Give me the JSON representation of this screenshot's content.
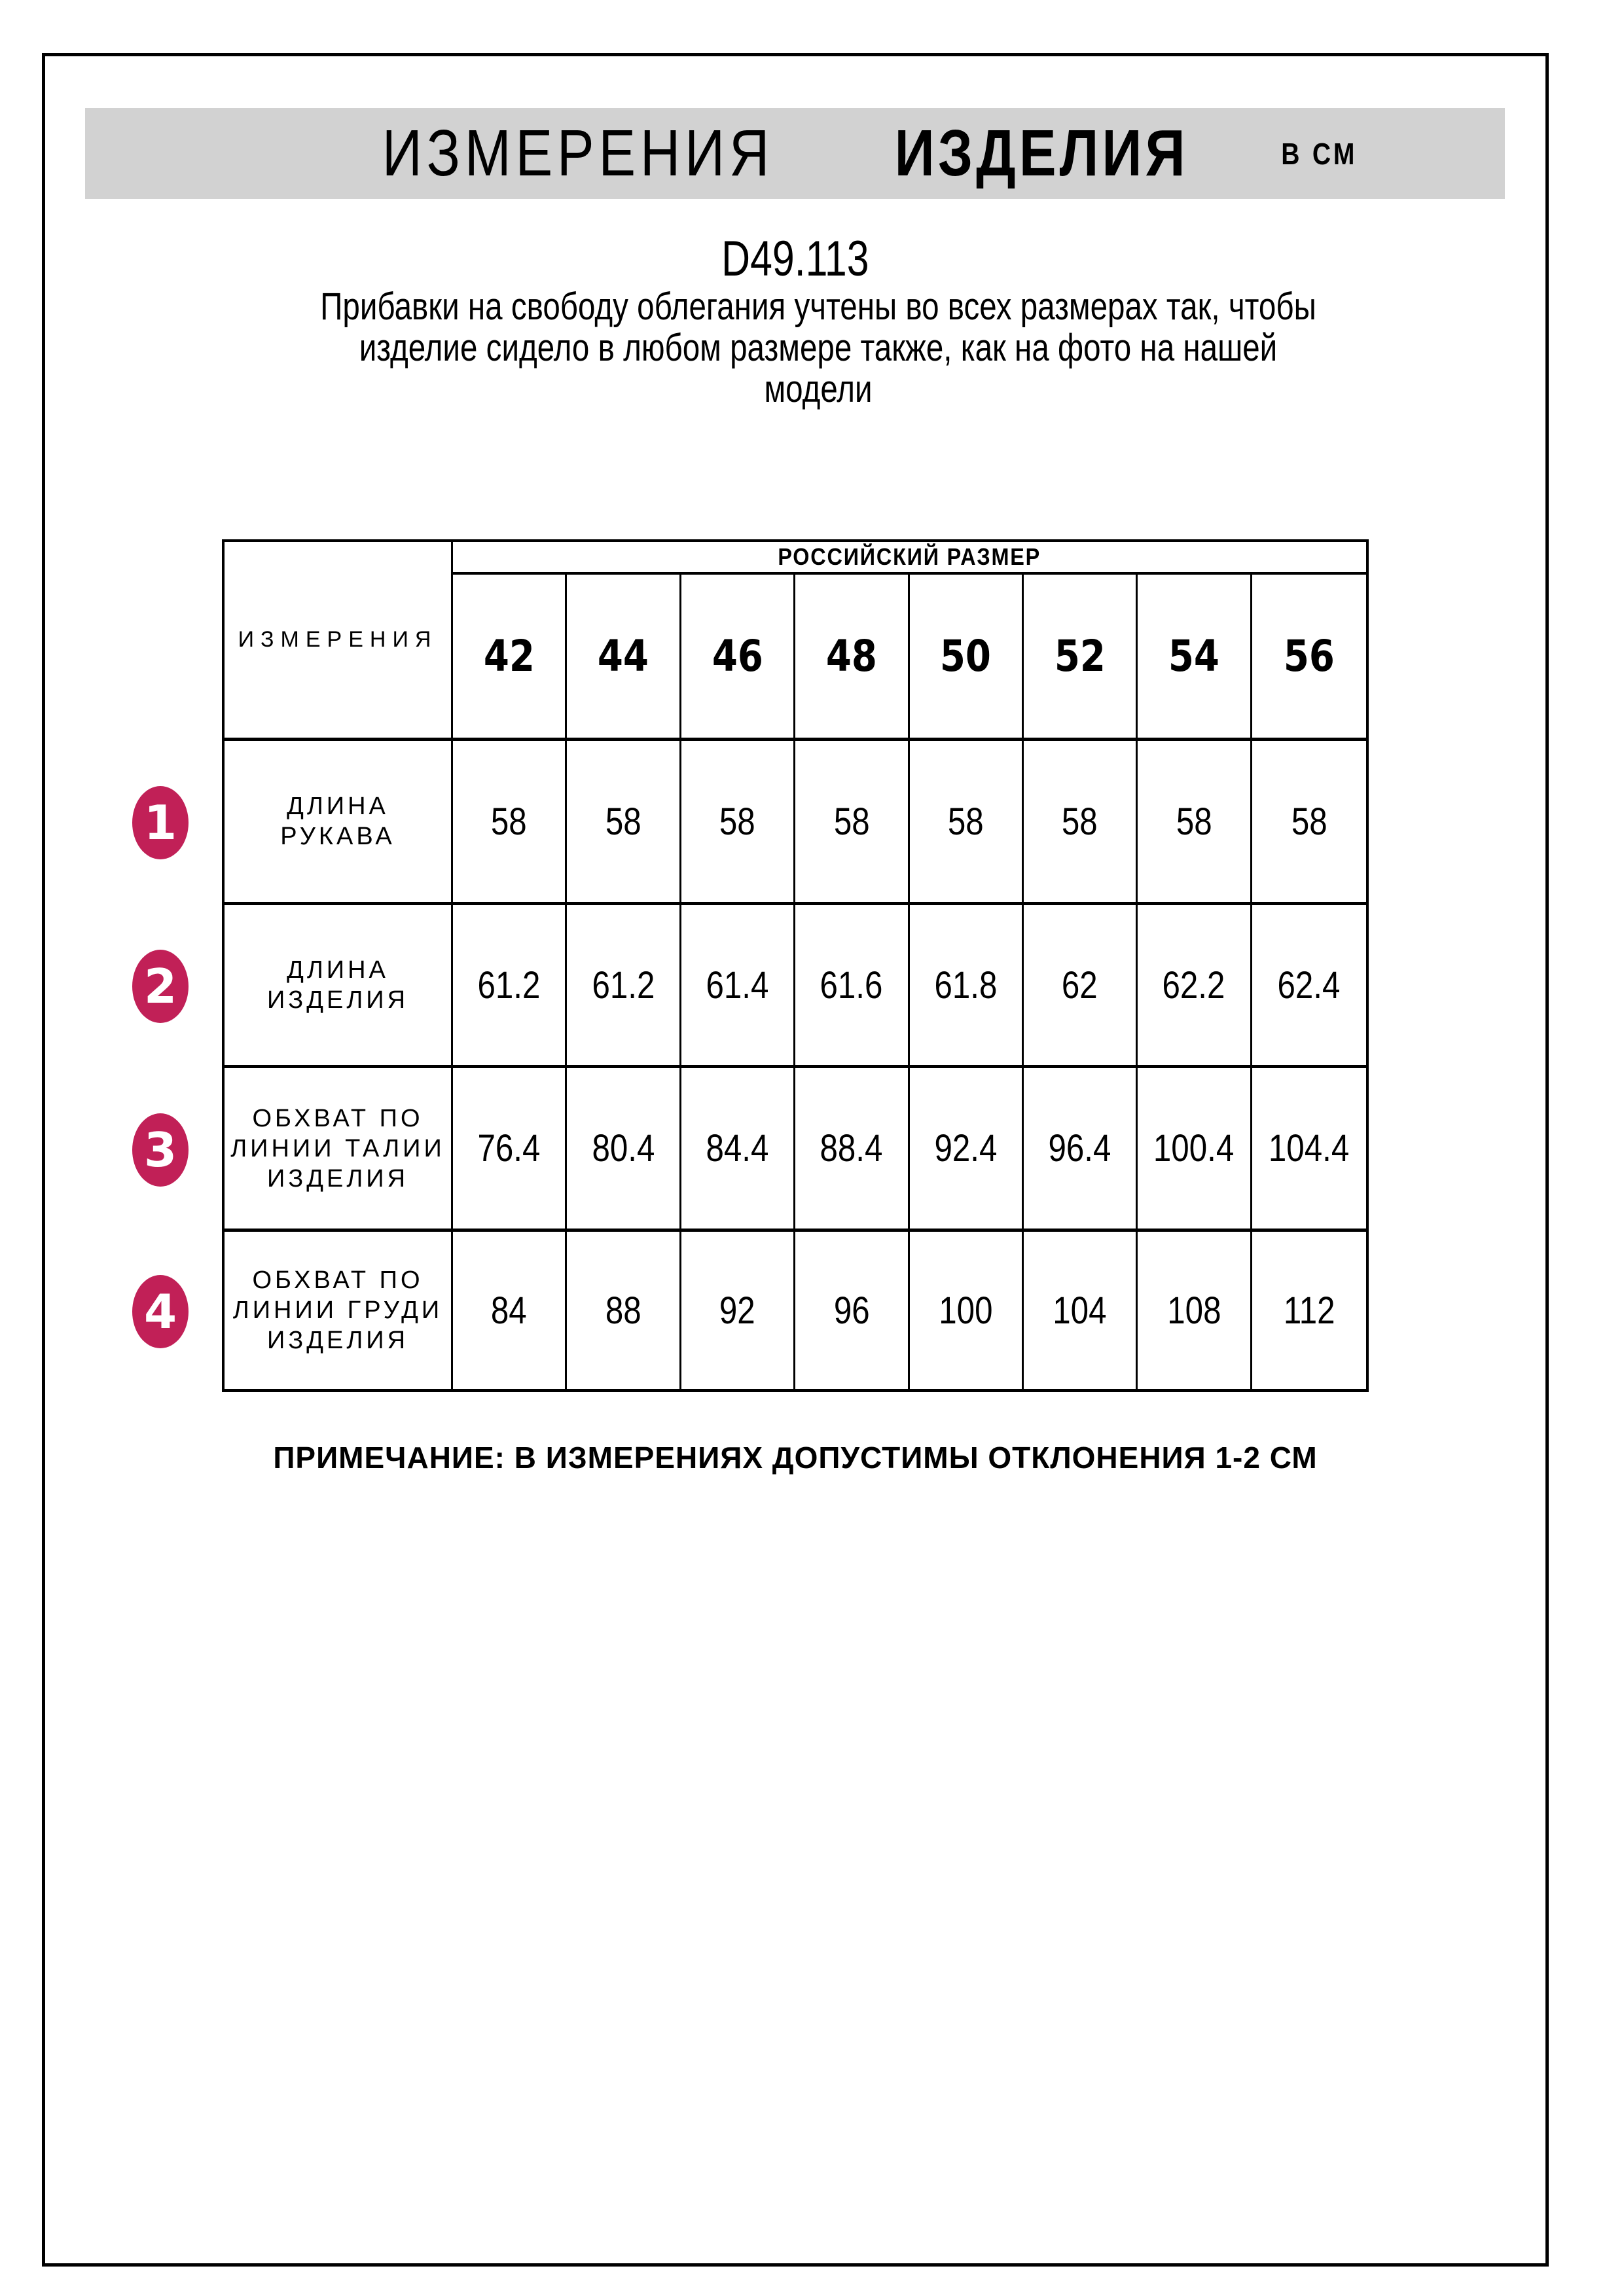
{
  "page": {
    "header": {
      "title_main": "ИЗМЕРЕНИЯ",
      "title_secondary": "ИЗДЕЛИЯ",
      "title_units": "В СМ"
    },
    "product_code": "D49.113",
    "description_lines": [
      "Прибавки на свободу облегания учтены во всех размерах так, чтобы",
      "изделие сидело в любом размере также, как на фото на нашей",
      "модели"
    ],
    "note": "ПРИМЕЧАНИЕ: В ИЗМЕРЕНИЯХ ДОПУСТИМЫ ОТКЛОНЕНИЯ 1-2 СМ"
  },
  "table": {
    "corner_label": "ИЗМЕРЕНИЯ",
    "size_group_label": "РОССИЙСКИЙ РАЗМЕР",
    "sizes": [
      "42",
      "44",
      "46",
      "48",
      "50",
      "52",
      "54",
      "56"
    ],
    "rows": [
      {
        "num": "1",
        "label_lines": [
          "ДЛИНА РУКАВА"
        ],
        "values": [
          "58",
          "58",
          "58",
          "58",
          "58",
          "58",
          "58",
          "58"
        ]
      },
      {
        "num": "2",
        "label_lines": [
          "ДЛИНА",
          "ИЗДЕЛИЯ"
        ],
        "values": [
          "61.2",
          "61.2",
          "61.4",
          "61.6",
          "61.8",
          "62",
          "62.2",
          "62.4"
        ]
      },
      {
        "num": "3",
        "label_lines": [
          "ОБХВАТ ПО",
          "ЛИНИИ ТАЛИИ",
          "ИЗДЕЛИЯ"
        ],
        "values": [
          "76.4",
          "80.4",
          "84.4",
          "88.4",
          "92.4",
          "96.4",
          "100.4",
          "104.4"
        ]
      },
      {
        "num": "4",
        "label_lines": [
          "ОБХВАТ ПО",
          "ЛИНИИ ГРУДИ",
          "ИЗДЕЛИЯ"
        ],
        "values": [
          "84",
          "88",
          "92",
          "96",
          "100",
          "104",
          "108",
          "112"
        ]
      }
    ]
  },
  "colors": {
    "badge": "#C12057",
    "header_band": "#D2D2D2"
  }
}
